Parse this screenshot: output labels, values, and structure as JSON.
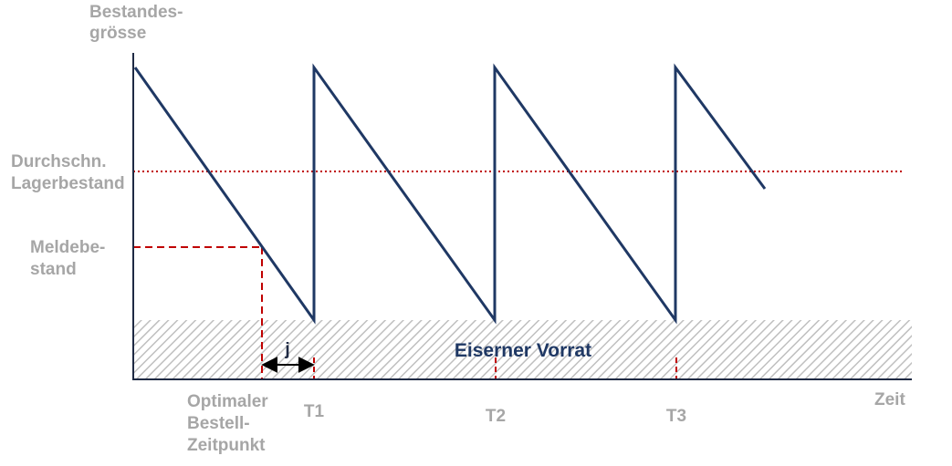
{
  "labels": {
    "y_axis": [
      "Bestandes-",
      "grösse"
    ],
    "x_axis": "Zeit",
    "average_stock": [
      "Durchschn.",
      "Lagerbestand"
    ],
    "reorder_level": [
      "Meldebe-",
      "stand"
    ],
    "optimal_order_point": [
      "Optimaler",
      "Bestell-",
      "Zeitpunkt"
    ],
    "lead_time": "j",
    "safety_stock": "Eiserner Vorrat",
    "periods": [
      "T1",
      "T2",
      "T3"
    ]
  },
  "colors": {
    "axis": "#1f2a44",
    "inventory_line": "#1f3864",
    "guide_lines": "#c00000",
    "label_gray": "#a6a6a6",
    "hatch": "#bfbfbf"
  }
}
